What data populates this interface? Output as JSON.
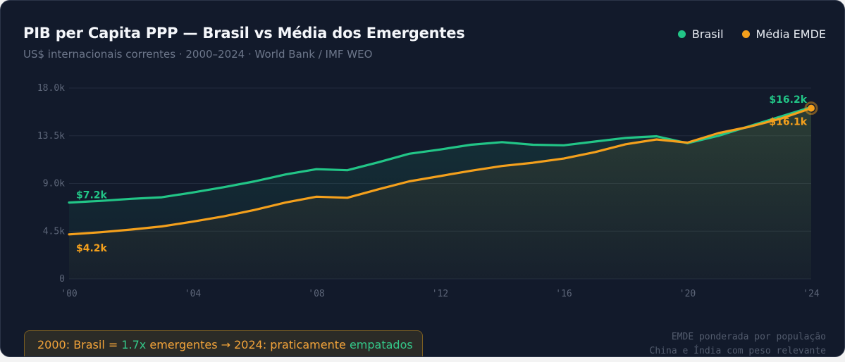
{
  "title": "PIB per Capita PPP — Brasil vs Média dos Emergentes",
  "subtitle": "US$ internacionais correntes · 2000–2024 · World Bank / IMF WEO",
  "legend": [
    {
      "label": "Brasil",
      "color": "#22c587"
    },
    {
      "label": "Média EMDE",
      "color": "#f4a01c"
    }
  ],
  "callout": {
    "p1": "2000: Brasil = ",
    "ratio": "1.7x",
    "p2": " emergentes → 2024: praticamente ",
    "tied": "empatados"
  },
  "footnote": {
    "line1": "EMDE ponderada por população",
    "line2": "China e Índia com peso relevante"
  },
  "chart_data": {
    "type": "line",
    "title": "PIB per Capita PPP — Brasil vs Média dos Emergentes",
    "x": [
      2000,
      2001,
      2002,
      2003,
      2004,
      2005,
      2006,
      2007,
      2008,
      2009,
      2010,
      2011,
      2012,
      2013,
      2014,
      2015,
      2016,
      2017,
      2018,
      2019,
      2020,
      2021,
      2022,
      2023,
      2024
    ],
    "xticks": [
      {
        "x": 2000,
        "label": "'00"
      },
      {
        "x": 2004,
        "label": "'04"
      },
      {
        "x": 2008,
        "label": "'08"
      },
      {
        "x": 2012,
        "label": "'12"
      },
      {
        "x": 2016,
        "label": "'16"
      },
      {
        "x": 2020,
        "label": "'20"
      },
      {
        "x": 2024,
        "label": "'24"
      }
    ],
    "yticks": [
      {
        "y": 0,
        "label": "0"
      },
      {
        "y": 4500,
        "label": "4.5k"
      },
      {
        "y": 9000,
        "label": "9.0k"
      },
      {
        "y": 13500,
        "label": "13.5k"
      },
      {
        "y": 18000,
        "label": "18.0k"
      }
    ],
    "ylim": [
      0,
      18000
    ],
    "xlim": [
      2000,
      2024
    ],
    "grid": true,
    "legend_position": "top-right",
    "series": [
      {
        "name": "Brasil",
        "color": "#22c587",
        "values": [
          7200,
          7350,
          7550,
          7700,
          8150,
          8650,
          9200,
          9850,
          10350,
          10250,
          11000,
          11800,
          12200,
          12650,
          12900,
          12650,
          12600,
          12950,
          13300,
          13450,
          12800,
          13500,
          14400,
          15300,
          16200
        ],
        "labels": [
          {
            "index": 0,
            "text": "$7.2k",
            "pos": "above"
          },
          {
            "index": 24,
            "text": "$16.2k",
            "pos": "above"
          }
        ]
      },
      {
        "name": "Média EMDE",
        "color": "#f4a01c",
        "values": [
          4200,
          4400,
          4650,
          4950,
          5400,
          5900,
          6500,
          7200,
          7750,
          7650,
          8450,
          9200,
          9700,
          10200,
          10650,
          10950,
          11350,
          11950,
          12700,
          13150,
          12850,
          13750,
          14350,
          15100,
          16100
        ],
        "labels": [
          {
            "index": 0,
            "text": "$4.2k",
            "pos": "below"
          },
          {
            "index": 24,
            "text": "$16.1k",
            "pos": "below"
          }
        ]
      }
    ]
  }
}
